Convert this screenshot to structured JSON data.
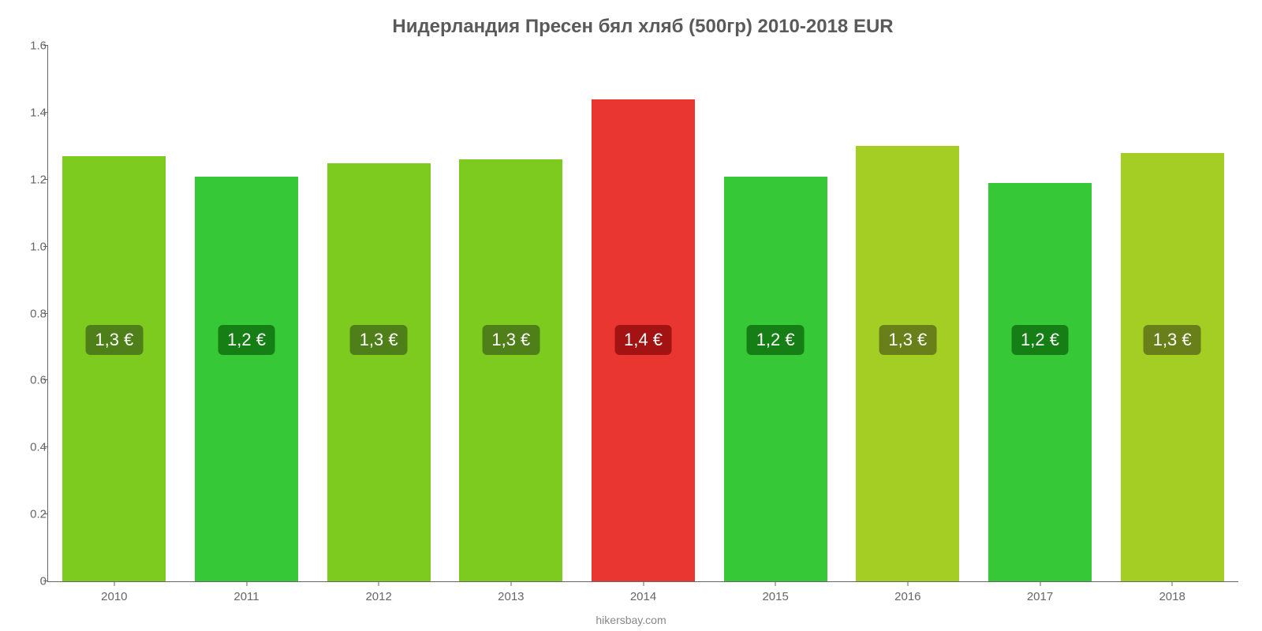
{
  "chart": {
    "type": "bar",
    "title": "Нидерландия Пресен бял хляб (500гр) 2010-2018 EUR",
    "title_fontsize": 24,
    "title_color": "#5a5a5a",
    "source": "hikersbay.com",
    "source_color": "#888888",
    "background_color": "#ffffff",
    "axis_color": "#666666",
    "tick_label_fontsize": 15,
    "tick_label_color": "#666666",
    "bar_width_ratio": 0.78,
    "ylim": [
      0,
      1.6
    ],
    "yticks": [
      {
        "value": 0,
        "label": "0"
      },
      {
        "value": 0.2,
        "label": "0.2"
      },
      {
        "value": 0.4,
        "label": "0.4"
      },
      {
        "value": 0.6,
        "label": "0.6"
      },
      {
        "value": 0.8,
        "label": "0.8"
      },
      {
        "value": 1.0,
        "label": "1.0"
      },
      {
        "value": 1.2,
        "label": "1.2"
      },
      {
        "value": 1.4,
        "label": "1.4"
      },
      {
        "value": 1.6,
        "label": "1.6"
      }
    ],
    "data_label_fontsize": 22,
    "data_label_text_color": "#ffffff",
    "data_label_y_value": 0.72,
    "bars": [
      {
        "category": "2010",
        "value": 1.27,
        "display": "1,3 €",
        "fill": "#7ecb20",
        "label_bg": "#4e7f18"
      },
      {
        "category": "2011",
        "value": 1.21,
        "display": "1,2 €",
        "fill": "#37c837",
        "label_bg": "#157f15"
      },
      {
        "category": "2012",
        "value": 1.25,
        "display": "1,3 €",
        "fill": "#7ecb20",
        "label_bg": "#4e7f18"
      },
      {
        "category": "2013",
        "value": 1.26,
        "display": "1,3 €",
        "fill": "#7ecb20",
        "label_bg": "#4e7f18"
      },
      {
        "category": "2014",
        "value": 1.44,
        "display": "1,4 €",
        "fill": "#e93630",
        "label_bg": "#a31313"
      },
      {
        "category": "2015",
        "value": 1.21,
        "display": "1,2 €",
        "fill": "#37c837",
        "label_bg": "#157f15"
      },
      {
        "category": "2016",
        "value": 1.3,
        "display": "1,3 €",
        "fill": "#a4ce23",
        "label_bg": "#697f1a"
      },
      {
        "category": "2017",
        "value": 1.19,
        "display": "1,2 €",
        "fill": "#37c837",
        "label_bg": "#157f15"
      },
      {
        "category": "2018",
        "value": 1.28,
        "display": "1,3 €",
        "fill": "#a4ce23",
        "label_bg": "#697f1a"
      }
    ]
  }
}
